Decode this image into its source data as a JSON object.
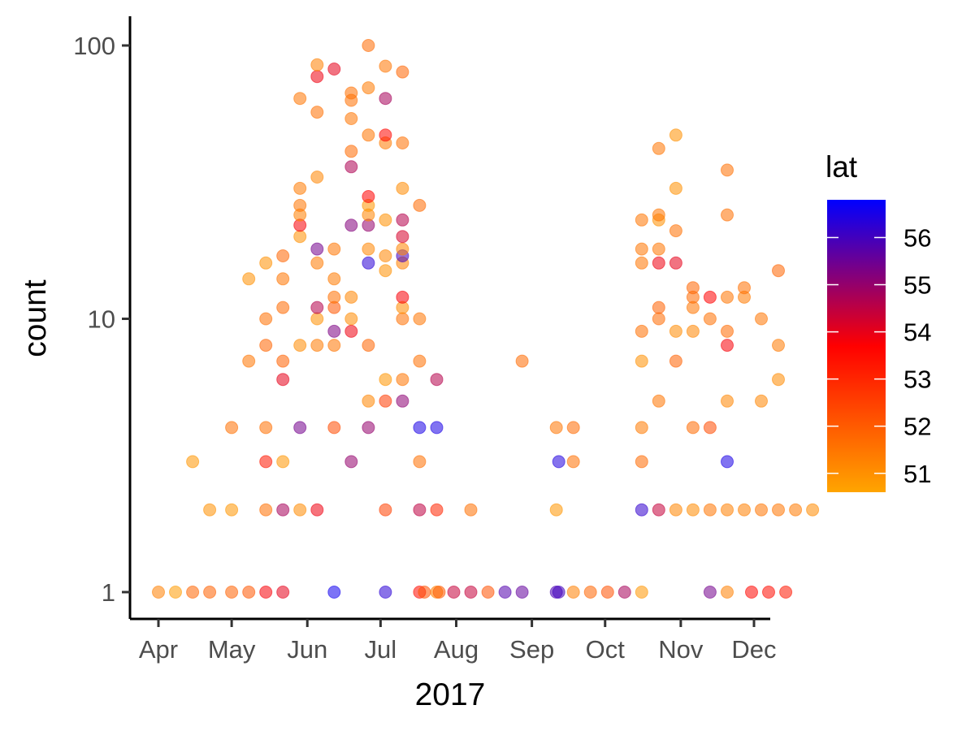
{
  "chart_data": {
    "type": "scatter",
    "xlabel": "2017",
    "ylabel": "count",
    "y_scale": "log10",
    "ylim": [
      1,
      100
    ],
    "y_ticks": [
      1,
      10,
      100
    ],
    "y_tick_labels": [
      "1",
      "10",
      "100"
    ],
    "x_ticks": [
      "2017-04-01",
      "2017-05-01",
      "2017-06-01",
      "2017-07-01",
      "2017-08-01",
      "2017-09-01",
      "2017-10-01",
      "2017-11-01",
      "2017-12-01"
    ],
    "x_tick_labels": [
      "Apr",
      "May",
      "Jun",
      "Jul",
      "Aug",
      "Sep",
      "Oct",
      "Nov",
      "Dec"
    ],
    "grid": false,
    "legend": {
      "title": "lat",
      "position": "right",
      "type": "colorbar",
      "range": [
        50.6,
        56.8
      ],
      "breaks": [
        51,
        52,
        53,
        54,
        55,
        56
      ],
      "colors": [
        "#FFA500",
        "#FF0000",
        "#0000FF"
      ]
    },
    "points": [
      {
        "x": "2017-04-01",
        "y": 1,
        "lat": 51.3
      },
      {
        "x": "2017-04-08",
        "y": 1,
        "lat": 50.8
      },
      {
        "x": "2017-04-15",
        "y": 1,
        "lat": 51.8
      },
      {
        "x": "2017-04-22",
        "y": 1,
        "lat": 51.9
      },
      {
        "x": "2017-05-01",
        "y": 1,
        "lat": 51.9
      },
      {
        "x": "2017-05-08",
        "y": 1,
        "lat": 52.1
      },
      {
        "x": "2017-05-15",
        "y": 1,
        "lat": 53.8
      },
      {
        "x": "2017-05-22",
        "y": 1,
        "lat": 54.0
      },
      {
        "x": "2017-06-12",
        "y": 1,
        "lat": 56.6
      },
      {
        "x": "2017-07-03",
        "y": 1,
        "lat": 56.3
      },
      {
        "x": "2017-07-17",
        "y": 1,
        "lat": 53.5
      },
      {
        "x": "2017-07-19",
        "y": 1,
        "lat": 52.2
      },
      {
        "x": "2017-07-24",
        "y": 1,
        "lat": 51.3
      },
      {
        "x": "2017-07-25",
        "y": 1,
        "lat": 52.0
      },
      {
        "x": "2017-07-31",
        "y": 1,
        "lat": 54.4
      },
      {
        "x": "2017-08-07",
        "y": 1,
        "lat": 54.4
      },
      {
        "x": "2017-08-14",
        "y": 1,
        "lat": 52.2
      },
      {
        "x": "2017-08-21",
        "y": 1,
        "lat": 55.8
      },
      {
        "x": "2017-08-28",
        "y": 1,
        "lat": 55.6
      },
      {
        "x": "2017-09-11",
        "y": 1,
        "lat": 55.9
      },
      {
        "x": "2017-09-12",
        "y": 1,
        "lat": 56.0
      },
      {
        "x": "2017-09-18",
        "y": 1,
        "lat": 51.3
      },
      {
        "x": "2017-09-25",
        "y": 1,
        "lat": 51.8
      },
      {
        "x": "2017-10-02",
        "y": 1,
        "lat": 52.2
      },
      {
        "x": "2017-10-09",
        "y": 1,
        "lat": 54.8
      },
      {
        "x": "2017-10-16",
        "y": 1,
        "lat": 50.9
      },
      {
        "x": "2017-11-13",
        "y": 1,
        "lat": 55.4
      },
      {
        "x": "2017-11-20",
        "y": 1,
        "lat": 51.3
      },
      {
        "x": "2017-11-30",
        "y": 1,
        "lat": 53.6
      },
      {
        "x": "2017-12-07",
        "y": 1,
        "lat": 53.5
      },
      {
        "x": "2017-12-14",
        "y": 1,
        "lat": 53.3
      },
      {
        "x": "2017-04-22",
        "y": 2,
        "lat": 51.0
      },
      {
        "x": "2017-05-01",
        "y": 2,
        "lat": 50.9
      },
      {
        "x": "2017-05-15",
        "y": 2,
        "lat": 51.6
      },
      {
        "x": "2017-05-22",
        "y": 2,
        "lat": 54.8
      },
      {
        "x": "2017-05-29",
        "y": 2,
        "lat": 51.1
      },
      {
        "x": "2017-06-05",
        "y": 2,
        "lat": 53.9
      },
      {
        "x": "2017-07-03",
        "y": 2,
        "lat": 52.5
      },
      {
        "x": "2017-07-17",
        "y": 2,
        "lat": 54.5
      },
      {
        "x": "2017-07-24",
        "y": 2,
        "lat": 53.0
      },
      {
        "x": "2017-08-07",
        "y": 2,
        "lat": 51.6
      },
      {
        "x": "2017-09-11",
        "y": 2,
        "lat": 50.9
      },
      {
        "x": "2017-10-16",
        "y": 2,
        "lat": 56.2
      },
      {
        "x": "2017-10-23",
        "y": 2,
        "lat": 54.4
      },
      {
        "x": "2017-10-30",
        "y": 2,
        "lat": 51.2
      },
      {
        "x": "2017-11-06",
        "y": 2,
        "lat": 51.1
      },
      {
        "x": "2017-11-13",
        "y": 2,
        "lat": 51.5
      },
      {
        "x": "2017-11-20",
        "y": 2,
        "lat": 51.3
      },
      {
        "x": "2017-11-27",
        "y": 2,
        "lat": 51.3
      },
      {
        "x": "2017-12-04",
        "y": 2,
        "lat": 51.5
      },
      {
        "x": "2017-12-11",
        "y": 2,
        "lat": 51.5
      },
      {
        "x": "2017-12-18",
        "y": 2,
        "lat": 51.4
      },
      {
        "x": "2017-12-25",
        "y": 2,
        "lat": 51.1
      },
      {
        "x": "2017-04-15",
        "y": 3,
        "lat": 50.9
      },
      {
        "x": "2017-05-15",
        "y": 3,
        "lat": 53.3
      },
      {
        "x": "2017-05-22",
        "y": 3,
        "lat": 50.9
      },
      {
        "x": "2017-06-19",
        "y": 3,
        "lat": 55.0
      },
      {
        "x": "2017-07-17",
        "y": 3,
        "lat": 51.6
      },
      {
        "x": "2017-09-12",
        "y": 3,
        "lat": 56.4
      },
      {
        "x": "2017-09-18",
        "y": 3,
        "lat": 51.6
      },
      {
        "x": "2017-10-16",
        "y": 3,
        "lat": 51.7
      },
      {
        "x": "2017-11-20",
        "y": 3,
        "lat": 56.5
      },
      {
        "x": "2017-05-01",
        "y": 4,
        "lat": 51.6
      },
      {
        "x": "2017-05-15",
        "y": 4,
        "lat": 51.6
      },
      {
        "x": "2017-05-29",
        "y": 4,
        "lat": 55.4
      },
      {
        "x": "2017-06-12",
        "y": 4,
        "lat": 52.3
      },
      {
        "x": "2017-06-26",
        "y": 4,
        "lat": 55.0
      },
      {
        "x": "2017-07-17",
        "y": 4,
        "lat": 56.5
      },
      {
        "x": "2017-07-24",
        "y": 4,
        "lat": 56.5
      },
      {
        "x": "2017-09-11",
        "y": 4,
        "lat": 51.5
      },
      {
        "x": "2017-09-18",
        "y": 4,
        "lat": 51.7
      },
      {
        "x": "2017-10-16",
        "y": 4,
        "lat": 51.4
      },
      {
        "x": "2017-11-06",
        "y": 4,
        "lat": 51.7
      },
      {
        "x": "2017-11-13",
        "y": 4,
        "lat": 52.3
      },
      {
        "x": "2017-07-03",
        "y": 5,
        "lat": 52.6
      },
      {
        "x": "2017-06-26",
        "y": 5,
        "lat": 51.2
      },
      {
        "x": "2017-07-10",
        "y": 5,
        "lat": 55.1
      },
      {
        "x": "2017-10-23",
        "y": 5,
        "lat": 51.5
      },
      {
        "x": "2017-11-20",
        "y": 5,
        "lat": 51.2
      },
      {
        "x": "2017-12-04",
        "y": 5,
        "lat": 51.2
      },
      {
        "x": "2017-05-22",
        "y": 6,
        "lat": 54.0
      },
      {
        "x": "2017-07-03",
        "y": 6,
        "lat": 50.9
      },
      {
        "x": "2017-07-10",
        "y": 6,
        "lat": 51.5
      },
      {
        "x": "2017-07-24",
        "y": 6,
        "lat": 54.6
      },
      {
        "x": "2017-12-11",
        "y": 6,
        "lat": 51.1
      },
      {
        "x": "2017-05-08",
        "y": 7,
        "lat": 51.5
      },
      {
        "x": "2017-05-22",
        "y": 7,
        "lat": 51.9
      },
      {
        "x": "2017-07-17",
        "y": 7,
        "lat": 51.6
      },
      {
        "x": "2017-08-28",
        "y": 7,
        "lat": 51.7
      },
      {
        "x": "2017-10-16",
        "y": 7,
        "lat": 51.0
      },
      {
        "x": "2017-10-30",
        "y": 7,
        "lat": 51.9
      },
      {
        "x": "2017-05-15",
        "y": 8,
        "lat": 51.8
      },
      {
        "x": "2017-05-29",
        "y": 8,
        "lat": 51.1
      },
      {
        "x": "2017-06-05",
        "y": 8,
        "lat": 51.4
      },
      {
        "x": "2017-06-12",
        "y": 8,
        "lat": 51.5
      },
      {
        "x": "2017-06-26",
        "y": 8,
        "lat": 51.8
      },
      {
        "x": "2017-11-20",
        "y": 8,
        "lat": 53.8
      },
      {
        "x": "2017-12-11",
        "y": 8,
        "lat": 51.4
      },
      {
        "x": "2017-06-12",
        "y": 9,
        "lat": 55.3
      },
      {
        "x": "2017-06-19",
        "y": 9,
        "lat": 53.9
      },
      {
        "x": "2017-10-16",
        "y": 9,
        "lat": 51.6
      },
      {
        "x": "2017-10-30",
        "y": 9,
        "lat": 51.1
      },
      {
        "x": "2017-11-06",
        "y": 9,
        "lat": 51.2
      },
      {
        "x": "2017-11-20",
        "y": 9,
        "lat": 51.7
      },
      {
        "x": "2017-05-15",
        "y": 10,
        "lat": 51.6
      },
      {
        "x": "2017-06-05",
        "y": 10,
        "lat": 51.0
      },
      {
        "x": "2017-06-19",
        "y": 10,
        "lat": 51.1
      },
      {
        "x": "2017-07-10",
        "y": 10,
        "lat": 51.6
      },
      {
        "x": "2017-07-17",
        "y": 10,
        "lat": 51.5
      },
      {
        "x": "2017-10-23",
        "y": 10,
        "lat": 51.7
      },
      {
        "x": "2017-11-13",
        "y": 10,
        "lat": 51.6
      },
      {
        "x": "2017-12-04",
        "y": 10,
        "lat": 51.5
      },
      {
        "x": "2017-05-22",
        "y": 11,
        "lat": 51.7
      },
      {
        "x": "2017-06-05",
        "y": 11,
        "lat": 54.6
      },
      {
        "x": "2017-06-12",
        "y": 11,
        "lat": 52.1
      },
      {
        "x": "2017-07-10",
        "y": 11,
        "lat": 51.1
      },
      {
        "x": "2017-10-23",
        "y": 11,
        "lat": 51.9
      },
      {
        "x": "2017-11-06",
        "y": 11,
        "lat": 51.5
      },
      {
        "x": "2017-06-12",
        "y": 12,
        "lat": 51.6
      },
      {
        "x": "2017-06-19",
        "y": 12,
        "lat": 51.2
      },
      {
        "x": "2017-07-10",
        "y": 12,
        "lat": 53.8
      },
      {
        "x": "2017-11-06",
        "y": 12,
        "lat": 51.7
      },
      {
        "x": "2017-11-13",
        "y": 12,
        "lat": 53.7
      },
      {
        "x": "2017-11-20",
        "y": 12,
        "lat": 51.5
      },
      {
        "x": "2017-11-27",
        "y": 12,
        "lat": 51.4
      },
      {
        "x": "2017-11-06",
        "y": 13,
        "lat": 51.8
      },
      {
        "x": "2017-11-27",
        "y": 13,
        "lat": 51.6
      },
      {
        "x": "2017-05-08",
        "y": 14,
        "lat": 51.0
      },
      {
        "x": "2017-05-22",
        "y": 14,
        "lat": 51.5
      },
      {
        "x": "2017-06-12",
        "y": 14,
        "lat": 51.4
      },
      {
        "x": "2017-05-15",
        "y": 16,
        "lat": 51.0
      },
      {
        "x": "2017-06-05",
        "y": 16,
        "lat": 51.4
      },
      {
        "x": "2017-06-26",
        "y": 16,
        "lat": 56.3
      },
      {
        "x": "2017-07-03",
        "y": 15,
        "lat": 51.0
      },
      {
        "x": "2017-07-10",
        "y": 16,
        "lat": 51.3
      },
      {
        "x": "2017-07-10",
        "y": 17,
        "lat": 56.0
      },
      {
        "x": "2017-10-30",
        "y": 16,
        "lat": 54.0
      },
      {
        "x": "2017-10-16",
        "y": 16,
        "lat": 51.5
      },
      {
        "x": "2017-10-23",
        "y": 16,
        "lat": 53.9
      },
      {
        "x": "2017-12-11",
        "y": 15,
        "lat": 51.8
      },
      {
        "x": "2017-05-22",
        "y": 17,
        "lat": 51.8
      },
      {
        "x": "2017-07-03",
        "y": 17,
        "lat": 51.2
      },
      {
        "x": "2017-06-05",
        "y": 18,
        "lat": 55.4
      },
      {
        "x": "2017-06-12",
        "y": 18,
        "lat": 51.5
      },
      {
        "x": "2017-06-26",
        "y": 18,
        "lat": 51.2
      },
      {
        "x": "2017-07-10",
        "y": 18,
        "lat": 51.2
      },
      {
        "x": "2017-10-16",
        "y": 18,
        "lat": 51.5
      },
      {
        "x": "2017-10-23",
        "y": 18,
        "lat": 51.5
      },
      {
        "x": "2017-05-29",
        "y": 20,
        "lat": 51.0
      },
      {
        "x": "2017-07-10",
        "y": 20,
        "lat": 54.2
      },
      {
        "x": "2017-05-29",
        "y": 22,
        "lat": 53.8
      },
      {
        "x": "2017-06-19",
        "y": 22,
        "lat": 55.2
      },
      {
        "x": "2017-06-26",
        "y": 22,
        "lat": 55.0
      },
      {
        "x": "2017-10-30",
        "y": 21,
        "lat": 51.6
      },
      {
        "x": "2017-05-29",
        "y": 24,
        "lat": 51.3
      },
      {
        "x": "2017-06-26",
        "y": 24,
        "lat": 51.2
      },
      {
        "x": "2017-07-03",
        "y": 23,
        "lat": 51.0
      },
      {
        "x": "2017-07-10",
        "y": 23,
        "lat": 54.6
      },
      {
        "x": "2017-10-16",
        "y": 23,
        "lat": 51.5
      },
      {
        "x": "2017-10-23",
        "y": 23,
        "lat": 51.0
      },
      {
        "x": "2017-10-23",
        "y": 24,
        "lat": 51.5
      },
      {
        "x": "2017-11-20",
        "y": 24,
        "lat": 51.6
      },
      {
        "x": "2017-05-29",
        "y": 26,
        "lat": 51.5
      },
      {
        "x": "2017-06-26",
        "y": 26,
        "lat": 50.9
      },
      {
        "x": "2017-07-17",
        "y": 26,
        "lat": 51.7
      },
      {
        "x": "2017-06-26",
        "y": 28,
        "lat": 53.7
      },
      {
        "x": "2017-05-29",
        "y": 30,
        "lat": 51.4
      },
      {
        "x": "2017-07-10",
        "y": 30,
        "lat": 51.1
      },
      {
        "x": "2017-10-30",
        "y": 30,
        "lat": 51.0
      },
      {
        "x": "2017-06-05",
        "y": 33,
        "lat": 51.2
      },
      {
        "x": "2017-06-19",
        "y": 36,
        "lat": 54.7
      },
      {
        "x": "2017-11-20",
        "y": 35,
        "lat": 51.6
      },
      {
        "x": "2017-06-19",
        "y": 41,
        "lat": 51.7
      },
      {
        "x": "2017-10-23",
        "y": 42,
        "lat": 51.5
      },
      {
        "x": "2017-07-03",
        "y": 44,
        "lat": 51.4
      },
      {
        "x": "2017-07-10",
        "y": 44,
        "lat": 51.6
      },
      {
        "x": "2017-06-26",
        "y": 47,
        "lat": 51.5
      },
      {
        "x": "2017-07-03",
        "y": 47,
        "lat": 53.6
      },
      {
        "x": "2017-10-30",
        "y": 47,
        "lat": 51.0
      },
      {
        "x": "2017-06-19",
        "y": 54,
        "lat": 51.5
      },
      {
        "x": "2017-06-05",
        "y": 57,
        "lat": 51.6
      },
      {
        "x": "2017-06-19",
        "y": 63,
        "lat": 51.6
      },
      {
        "x": "2017-05-29",
        "y": 64,
        "lat": 51.5
      },
      {
        "x": "2017-07-03",
        "y": 64,
        "lat": 54.8
      },
      {
        "x": "2017-06-19",
        "y": 67,
        "lat": 51.6
      },
      {
        "x": "2017-06-26",
        "y": 70,
        "lat": 51.4
      },
      {
        "x": "2017-06-05",
        "y": 77,
        "lat": 53.9
      },
      {
        "x": "2017-07-10",
        "y": 80,
        "lat": 51.8
      },
      {
        "x": "2017-06-12",
        "y": 82,
        "lat": 54.0
      },
      {
        "x": "2017-06-05",
        "y": 85,
        "lat": 51.3
      },
      {
        "x": "2017-07-03",
        "y": 84,
        "lat": 51.5
      },
      {
        "x": "2017-06-26",
        "y": 100,
        "lat": 51.7
      }
    ]
  }
}
